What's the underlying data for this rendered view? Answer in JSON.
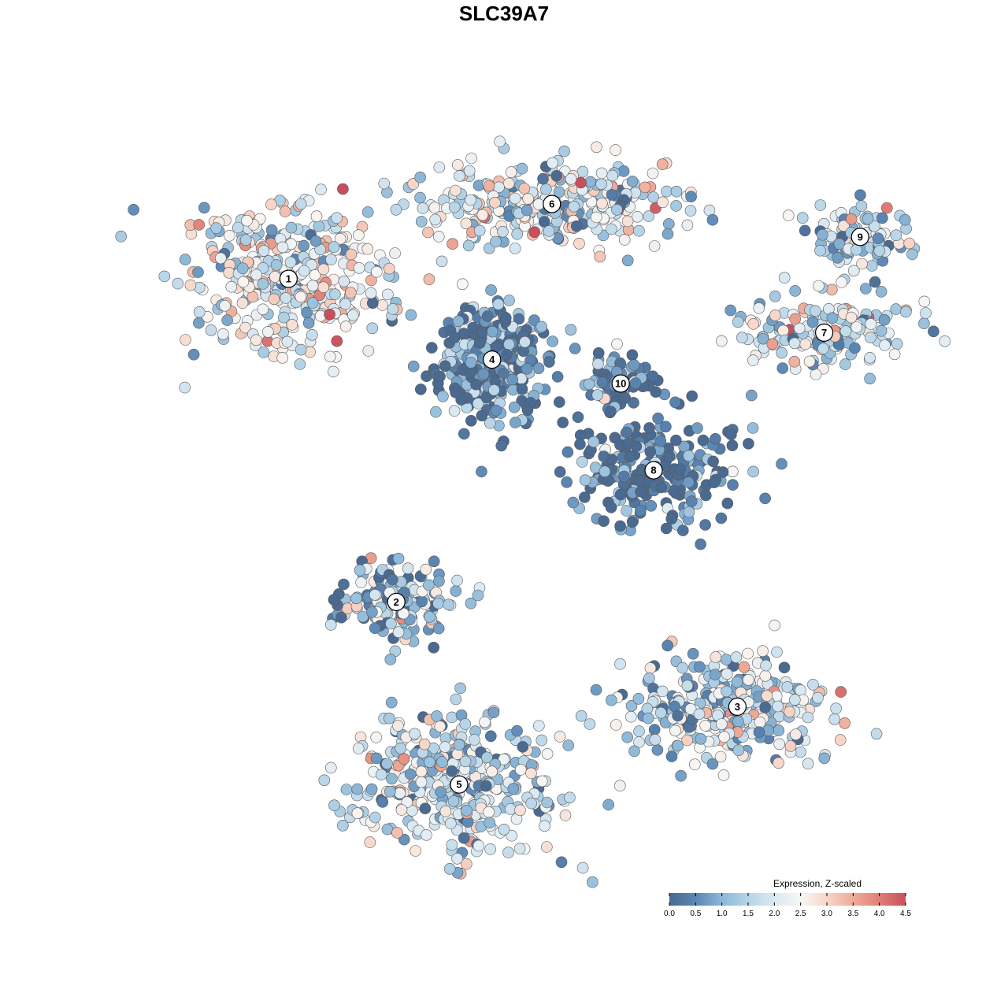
{
  "chart_data": {
    "type": "scatter",
    "title": "SLC39A7",
    "xlabel": "",
    "ylabel": "",
    "grid": false,
    "legend_placement": "bottom-right",
    "color_scale": {
      "title": "Expression, Z-scaled",
      "min": 0.0,
      "max": 4.5,
      "ticks": [
        "0.0",
        "0.5",
        "1.0",
        "1.5",
        "2.0",
        "2.5",
        "3.0",
        "3.5",
        "4.0",
        "4.5"
      ],
      "stops": [
        {
          "value": 0.0,
          "color": "#4a6a91"
        },
        {
          "value": 0.5,
          "color": "#5a86b4"
        },
        {
          "value": 1.0,
          "color": "#8db8d8"
        },
        {
          "value": 1.5,
          "color": "#b6d4e8"
        },
        {
          "value": 2.0,
          "color": "#dbe9f2"
        },
        {
          "value": 2.5,
          "color": "#f7f6f4"
        },
        {
          "value": 3.0,
          "color": "#f7d6c8"
        },
        {
          "value": 3.5,
          "color": "#eeab98"
        },
        {
          "value": 4.0,
          "color": "#df7f76"
        },
        {
          "value": 4.5,
          "color": "#c94f5c"
        }
      ]
    },
    "clusters": [
      {
        "label": "1",
        "x": -7.2,
        "y": 7.0,
        "mean_expression": 2.1
      },
      {
        "label": "2",
        "x": -3.6,
        "y": -3.8,
        "mean_expression": 1.0
      },
      {
        "label": "3",
        "x": 7.8,
        "y": -7.3,
        "mean_expression": 1.6
      },
      {
        "label": "4",
        "x": -0.4,
        "y": 4.3,
        "mean_expression": 0.4
      },
      {
        "label": "5",
        "x": -1.5,
        "y": -9.9,
        "mean_expression": 1.7
      },
      {
        "label": "6",
        "x": 1.6,
        "y": 9.5,
        "mean_expression": 1.9
      },
      {
        "label": "7",
        "x": 10.7,
        "y": 5.2,
        "mean_expression": 1.8
      },
      {
        "label": "8",
        "x": 5.0,
        "y": 0.6,
        "mean_expression": 0.3
      },
      {
        "label": "9",
        "x": 11.9,
        "y": 8.4,
        "mean_expression": 1.5
      },
      {
        "label": "10",
        "x": 3.9,
        "y": 3.5,
        "mean_expression": 0.3
      }
    ]
  }
}
